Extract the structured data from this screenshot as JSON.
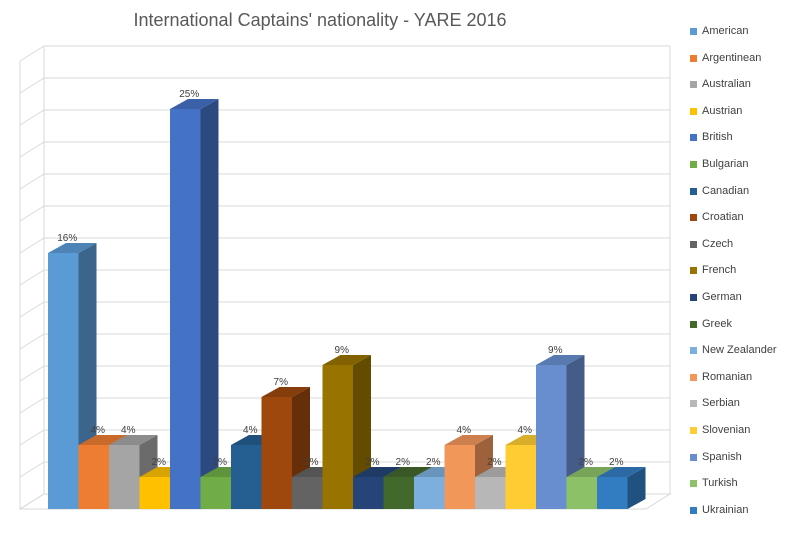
{
  "chart_data": {
    "type": "bar",
    "title": "International Captains' nationality - YARE 2016",
    "xlabel": "",
    "ylabel": "",
    "ylim": [
      0,
      28
    ],
    "grid": true,
    "legend_position": "right",
    "categories": [
      "American",
      "Argentinean",
      "Australian",
      "Austrian",
      "British",
      "Bulgarian",
      "Canadian",
      "Croatian",
      "Czech",
      "French",
      "German",
      "Greek",
      "New Zealander",
      "Romanian",
      "Serbian",
      "Slovenian",
      "Spanish",
      "Turkish",
      "Ukrainian"
    ],
    "values": [
      16,
      4,
      4,
      2,
      25,
      2,
      4,
      7,
      2,
      9,
      2,
      2,
      2,
      4,
      2,
      4,
      9,
      2,
      2
    ],
    "data_labels": [
      "16%",
      "4%",
      "4%",
      "2%",
      "25%",
      "2%",
      "4%",
      "7%",
      "2%",
      "9%",
      "2%",
      "2%",
      "2%",
      "4%",
      "2%",
      "4%",
      "9%",
      "2%",
      "2%"
    ],
    "colors": [
      "#5B9BD5",
      "#ED7D31",
      "#A5A5A5",
      "#FFC000",
      "#4472C4",
      "#70AD47",
      "#255E91",
      "#9E480E",
      "#636363",
      "#997300",
      "#264478",
      "#43682B",
      "#7CAFDD",
      "#F1975A",
      "#B7B7B7",
      "#FFCD33",
      "#698ED0",
      "#8CC168",
      "#327DC2"
    ]
  }
}
